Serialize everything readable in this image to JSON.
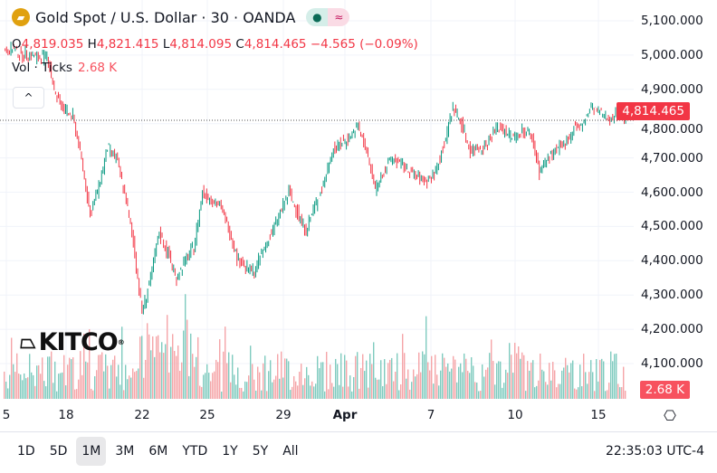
{
  "header": {
    "title": "Gold Spot / U.S. Dollar · 30 · OANDA",
    "status_dot": "●",
    "status_wave": "≈"
  },
  "ohlc": {
    "o_label": "O",
    "o": "4,819.035",
    "h_label": "H",
    "h": "4,821.415",
    "l_label": "L",
    "l": "4,814.095",
    "c_label": "C",
    "c": "4,814.465",
    "change": "−4.565 (−0.09%)"
  },
  "volume": {
    "label": "Vol · Ticks",
    "value": "2.68 K"
  },
  "collapse_icon": "^",
  "watermark": "KITCO",
  "price_tag": "4,814.465",
  "volume_tag": "2.68 K",
  "settings_icon": "⎔",
  "ranges": [
    "1D",
    "5D",
    "1M",
    "3M",
    "6M",
    "YTD",
    "1Y",
    "5Y",
    "All"
  ],
  "active_range": "1M",
  "clock": "22:35:03 UTC-4",
  "colors": {
    "up": "#089981",
    "down": "#f23645",
    "vol_up": "#7fcbbf",
    "vol_down": "#f5a5a8"
  },
  "chart_data": {
    "type": "line",
    "title": "Gold Spot / U.S. Dollar",
    "y_ticks": [
      5100,
      5000,
      4900,
      4800,
      4700,
      4600,
      4500,
      4400,
      4300,
      4200,
      4100
    ],
    "y_tick_labels": [
      "5,100.000",
      "5,000.000",
      "4,900.000",
      "4,800.000",
      "4,700.000",
      "4,600.000",
      "4,500.000",
      "4,400.000",
      "4,300.000",
      "4,200.000",
      "4,100.000"
    ],
    "ylim": [
      4050,
      5130
    ],
    "x_tick_labels": [
      "5",
      "18",
      "22",
      "25",
      "29",
      "Apr",
      "7",
      "10",
      "15"
    ],
    "last_price": 4814.465,
    "closes": [
      5010,
      5020,
      5000,
      5005,
      4990,
      5000,
      4880,
      4840,
      4820,
      4700,
      4530,
      4620,
      4730,
      4700,
      4600,
      4450,
      4250,
      4350,
      4480,
      4420,
      4350,
      4400,
      4440,
      4600,
      4580,
      4560,
      4500,
      4410,
      4380,
      4370,
      4430,
      4480,
      4540,
      4600,
      4540,
      4490,
      4560,
      4620,
      4720,
      4740,
      4760,
      4790,
      4720,
      4610,
      4660,
      4700,
      4680,
      4660,
      4640,
      4630,
      4660,
      4740,
      4850,
      4800,
      4720,
      4730,
      4740,
      4790,
      4780,
      4760,
      4780,
      4770,
      4660,
      4700,
      4720,
      4740,
      4790,
      4790,
      4850,
      4830,
      4815,
      4830,
      4814
    ]
  }
}
